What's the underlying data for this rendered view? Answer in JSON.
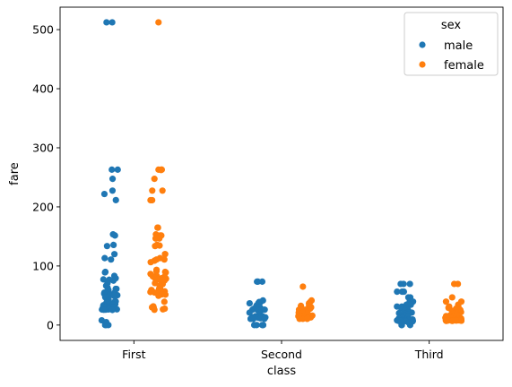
{
  "chart_data": {
    "type": "scatter",
    "subtype": "strip",
    "xlabel": "class",
    "ylabel": "fare",
    "categories": [
      "First",
      "Second",
      "Third"
    ],
    "yticks": [
      0,
      100,
      200,
      300,
      400,
      500
    ],
    "ylim": [
      -26,
      538
    ],
    "grid": false,
    "legend": {
      "title": "sex",
      "position": "top-right",
      "entries": [
        "male",
        "female"
      ]
    },
    "series": [
      {
        "name": "male",
        "color": "#1f77b4",
        "points": [
          {
            "category": "First",
            "values": [
              512.3,
              512.3,
              263,
              263,
              247.5,
              227.5,
              221.8,
              211.5,
              153.5,
              151.6,
              135.6,
              133.7,
              120,
              113.3,
              110.9,
              90,
              89.1,
              83.2,
              79.2,
              78.9,
              77.3,
              76.7,
              75.2,
              71.3,
              66.6,
              63.4,
              61.3,
              61.2,
              59.4,
              57.0,
              55.4,
              55.0,
              53.1,
              52.6,
              52.0,
              51.9,
              50.5,
              50.0,
              49.5,
              47.1,
              42.4,
              40.1,
              39.6,
              38.5,
              35.5,
              35.5,
              34.7,
              33.5,
              31.0,
              30.7,
              30.5,
              30.0,
              29.7,
              28.5,
              27.7,
              27.7,
              26.6,
              26.6,
              26.6,
              26.3,
              26.0,
              25.9,
              25.6,
              8.0,
              5.0,
              0,
              0,
              0
            ]
          },
          {
            "category": "Second",
            "values": [
              73.5,
              73.5,
              73.5,
              41.6,
              39.0,
              39.0,
              36.8,
              36.8,
              33.0,
              30.1,
              30.0,
              27.7,
              26.0,
              26.0,
              26.0,
              26.0,
              26.0,
              24.0,
              21.0,
              21.0,
              18.8,
              15.0,
              15.0,
              13.9,
              13.5,
              13.0,
              13.0,
              13.0,
              13.0,
              13.0,
              13.0,
              12.7,
              12.5,
              11.5,
              10.5,
              10.5,
              10.5,
              10.5,
              0,
              0,
              0,
              0
            ]
          },
          {
            "category": "Third",
            "values": [
              69.6,
              69.6,
              69.6,
              56.5,
              56.5,
              56.5,
              46.9,
              46.9,
              39.7,
              39.7,
              34.4,
              34.4,
              31.3,
              31.3,
              29.1,
              27.9,
              27.9,
              25.5,
              24.2,
              24.2,
              21.1,
              21.1,
              20.6,
              20.2,
              19.3,
              18.8,
              17.8,
              16.1,
              15.5,
              15.2,
              14.5,
              14.5,
              12.5,
              12.3,
              11.2,
              9.6,
              9.5,
              9.5,
              8.7,
              8.1,
              8.1,
              8.1,
              8.1,
              8.1,
              7.9,
              7.9,
              7.9,
              7.9,
              7.9,
              7.9,
              7.8,
              7.8,
              7.8,
              7.8,
              7.8,
              7.8,
              7.7,
              7.6,
              7.3,
              7.2,
              7.2,
              7.1,
              7.1,
              7.1,
              7.1,
              7.0,
              6.9,
              6.5,
              6.4,
              6.2,
              5.0,
              4.0,
              0,
              0,
              0
            ]
          }
        ]
      },
      {
        "name": "female",
        "color": "#ff7f0e",
        "points": [
          {
            "category": "First",
            "values": [
              512.3,
              263,
              263,
              263,
              262.4,
              247.5,
              227.5,
              227.5,
              211.3,
              211.3,
              164.9,
              164.9,
              153.5,
              151.6,
              151.6,
              146.5,
              146.5,
              135.6,
              135.6,
              134.5,
              133.7,
              120,
              120,
              113.3,
              110.9,
              110.9,
              108.9,
              106.4,
              93.5,
              91.1,
              90,
              89.1,
              86.5,
              83.2,
              83.2,
              82.2,
              81.9,
              80.0,
              79.7,
              79.2,
              78.3,
              77.9,
              77.3,
              76.3,
              75.3,
              71.0,
              69.3,
              66.6,
              63.4,
              61.3,
              59.4,
              57.0,
              56.9,
              55.9,
              55.4,
              55.0,
              53.1,
              52.0,
              51.5,
              49.5,
              39.4,
              31.7,
              30.0,
              29.7,
              27.7,
              26.6,
              25.9
            ]
          },
          {
            "category": "Second",
            "values": [
              65,
              41.6,
              39.0,
              36.8,
              33.0,
              32.5,
              30.1,
              30.0,
              27.7,
              26.3,
              26.0,
              26.0,
              26.0,
              26.0,
              26.0,
              23.0,
              21.0,
              21.0,
              19.5,
              16.0,
              15.8,
              15.0,
              14.5,
              13.8,
              13.5,
              13.0,
              13.0,
              13.0,
              13.0,
              12.7,
              12.5,
              11.5,
              10.5,
              10.5,
              10.5
            ]
          },
          {
            "category": "Third",
            "values": [
              69.6,
              69.6,
              46.9,
              39.7,
              39.7,
              34.4,
              31.4,
              31.3,
              29.1,
              27.9,
              25.5,
              24.2,
              23.5,
              22.0,
              21.1,
              20.6,
              20.2,
              19.3,
              18.8,
              17.8,
              16.7,
              16.1,
              15.5,
              15.2,
              14.5,
              14.5,
              13.4,
              12.5,
              12.3,
              12.2,
              11.1,
              10.5,
              9.8,
              9.6,
              9.5,
              9.2,
              8.7,
              8.5,
              8.1,
              8.1,
              8.0,
              7.9,
              7.9,
              7.8,
              7.8,
              7.8,
              7.8,
              7.8,
              7.7,
              7.7,
              7.7,
              7.3,
              7.2,
              7.1,
              7.0
            ]
          }
        ]
      }
    ]
  }
}
